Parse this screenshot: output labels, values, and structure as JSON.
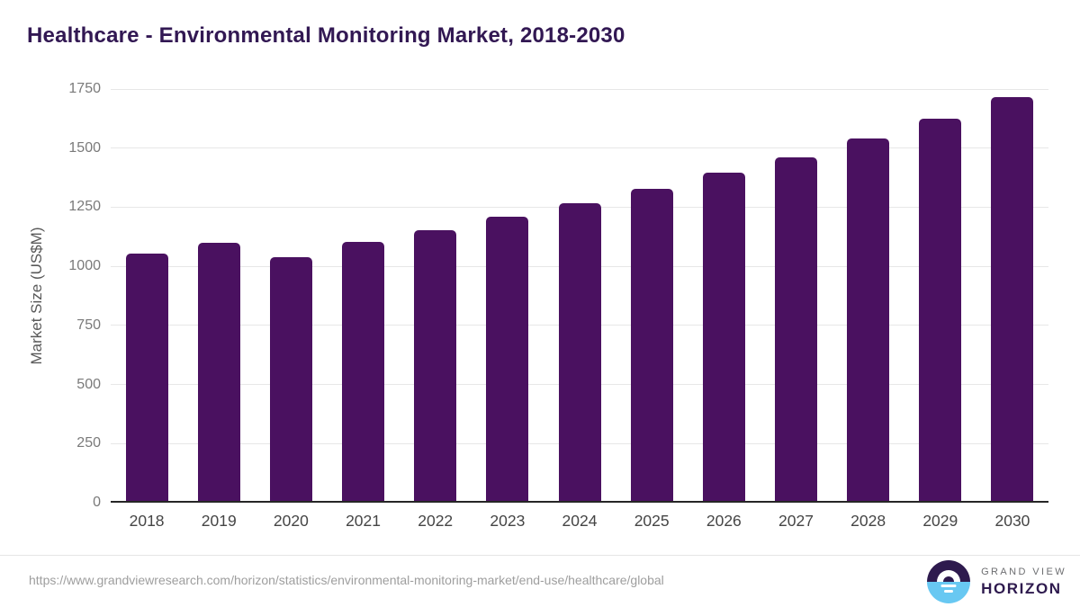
{
  "header": {
    "title": "Healthcare - Environmental Monitoring Market, 2018-2030"
  },
  "chart_data": {
    "type": "bar",
    "title": "Healthcare - Environmental Monitoring Market, 2018-2030",
    "categories": [
      "2018",
      "2019",
      "2020",
      "2021",
      "2022",
      "2023",
      "2024",
      "2025",
      "2026",
      "2027",
      "2028",
      "2029",
      "2030"
    ],
    "values": [
      1045,
      1093,
      1030,
      1097,
      1146,
      1201,
      1259,
      1321,
      1387,
      1455,
      1533,
      1618,
      1710
    ],
    "xlabel": "",
    "ylabel": "Market Size (US$M)",
    "ylim": [
      0,
      1750
    ],
    "yticks": [
      0,
      250,
      500,
      750,
      1000,
      1250,
      1500,
      1750
    ],
    "grid": true,
    "legend": false,
    "bar_color": "#4a1160"
  },
  "footer": {
    "source_url": "https://www.grandviewresearch.com/horizon/statistics/environmental-monitoring-market/end-use/healthcare/global",
    "logo": {
      "line1": "GRAND VIEW",
      "line2": "HORIZON"
    }
  },
  "colors": {
    "title": "#321853",
    "bar": "#4a1160",
    "axis_label": "#595959",
    "axis_text": "#7a7a7a",
    "x_label": "#454545",
    "gridline": "#e7e7e7",
    "baseline": "#262626",
    "divider": "#e5e5e5",
    "url_text": "#9e9e9e",
    "logo_purple": "#2e1a4e",
    "logo_blue": "#68c8f2",
    "logo_gray": "#6d6e71"
  }
}
